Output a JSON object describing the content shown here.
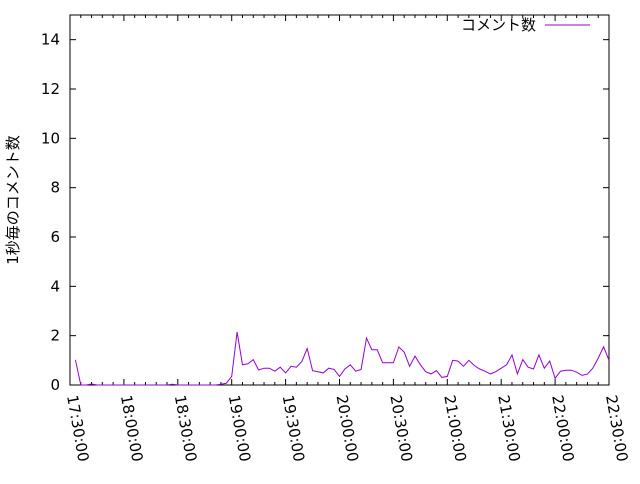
{
  "chart_data": {
    "type": "line",
    "title": "",
    "xlabel": "",
    "ylabel": "1秒毎のコメント数",
    "ylim": [
      0,
      15
    ],
    "yticks": [
      "0",
      "2",
      "4",
      "6",
      "8",
      "10",
      "12",
      "14"
    ],
    "xlim": [
      "17:30:00",
      "22:30:00"
    ],
    "xticks": [
      "17:30:00",
      "18:00:00",
      "18:30:00",
      "19:00:00",
      "19:30:00",
      "20:00:00",
      "20:30:00",
      "21:00:00",
      "21:30:00",
      "22:00:00",
      "22:30:00"
    ],
    "grid": false,
    "legend_position": "top-right",
    "series": [
      {
        "name": "コメント数",
        "color": "#9400d3",
        "x": [
          "17:33",
          "17:36",
          "17:39",
          "17:42",
          "17:45",
          "17:48",
          "17:51",
          "17:54",
          "17:57",
          "18:00",
          "18:03",
          "18:06",
          "18:09",
          "18:12",
          "18:15",
          "18:18",
          "18:21",
          "18:24",
          "18:27",
          "18:30",
          "18:33",
          "18:36",
          "18:39",
          "18:42",
          "18:45",
          "18:48",
          "18:51",
          "18:54",
          "18:57",
          "19:00",
          "19:03",
          "19:06",
          "19:09",
          "19:12",
          "19:15",
          "19:18",
          "19:21",
          "19:24",
          "19:27",
          "19:30",
          "19:33",
          "19:36",
          "19:39",
          "19:42",
          "19:45",
          "19:48",
          "19:51",
          "19:54",
          "19:57",
          "20:00",
          "20:03",
          "20:06",
          "20:09",
          "20:12",
          "20:15",
          "20:18",
          "20:21",
          "20:24",
          "20:27",
          "20:30",
          "20:33",
          "20:36",
          "20:39",
          "20:42",
          "20:45",
          "20:48",
          "20:51",
          "20:54",
          "20:57",
          "21:00",
          "21:03",
          "21:06",
          "21:09",
          "21:12",
          "21:15",
          "21:18",
          "21:21",
          "21:24",
          "21:27",
          "21:30",
          "21:33",
          "21:36",
          "21:39",
          "21:42",
          "21:45",
          "21:48",
          "21:51",
          "21:54",
          "21:57",
          "22:00",
          "22:03",
          "22:06",
          "22:09",
          "22:12",
          "22:15",
          "22:18",
          "22:21",
          "22:24",
          "22:27",
          "22:30"
        ],
        "values": [
          1.02,
          0,
          0,
          0.04,
          0,
          0,
          0,
          0,
          0,
          0,
          0,
          0,
          0,
          0,
          0,
          0,
          0,
          0,
          0.03,
          0,
          0,
          0,
          0,
          0,
          0,
          0,
          0,
          0.03,
          0.07,
          0.35,
          2.15,
          0.82,
          0.86,
          1.03,
          0.61,
          0.68,
          0.68,
          0.56,
          0.72,
          0.49,
          0.76,
          0.72,
          0.95,
          1.48,
          0.58,
          0.54,
          0.49,
          0.68,
          0.63,
          0.35,
          0.65,
          0.82,
          0.56,
          0.63,
          1.9,
          1.43,
          1.43,
          0.9,
          0.9,
          0.9,
          1.54,
          1.33,
          0.76,
          1.17,
          0.82,
          0.54,
          0.45,
          0.58,
          0.31,
          0.35,
          1.0,
          0.97,
          0.76,
          1.0,
          0.79,
          0.65,
          0.56,
          0.45,
          0.54,
          0.68,
          0.82,
          1.22,
          0.45,
          1.03,
          0.72,
          0.65,
          1.22,
          0.68,
          0.97,
          0.27,
          0.56,
          0.6,
          0.6,
          0.52,
          0.39,
          0.44,
          0.68,
          1.09,
          1.55,
          1.0
        ]
      }
    ]
  }
}
